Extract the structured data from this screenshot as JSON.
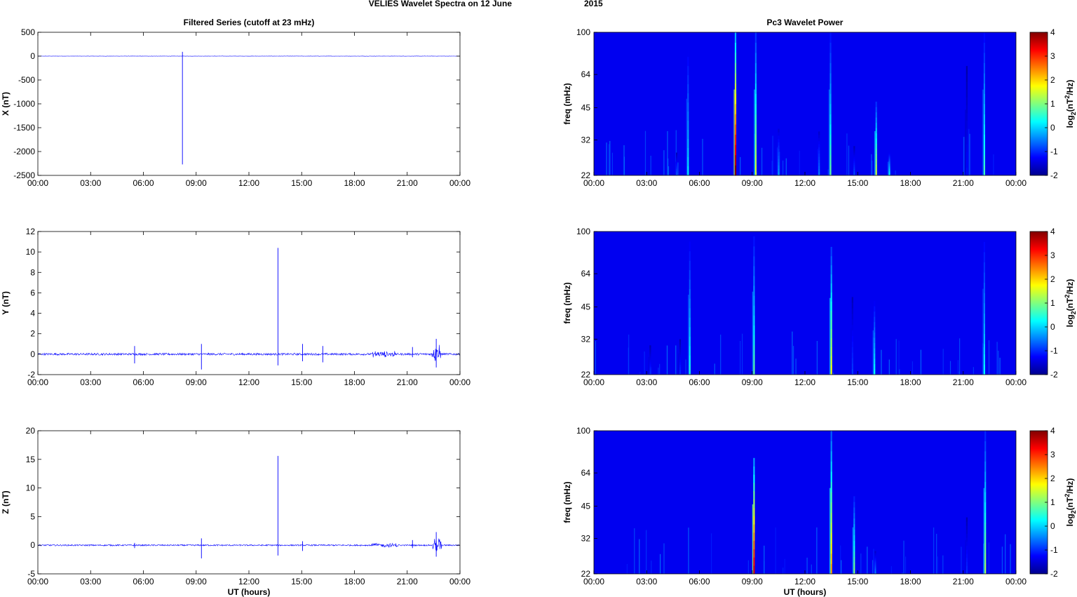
{
  "figure": {
    "title_left": "VELIES Wavelet Spectra on 12 June",
    "title_right": "2015",
    "left_col_title": "Filtered Series (cutoff at 23 mHz)",
    "right_col_title": "Pc3 Wavelet Power",
    "x_label": "UT (hours)",
    "x_ticks": [
      "00:00",
      "03:00",
      "06:00",
      "09:00",
      "12:00",
      "15:00",
      "18:00",
      "21:00",
      "00:00"
    ]
  },
  "chart_data": [
    {
      "type": "line",
      "panel": "X",
      "ylabel": "X (nT)",
      "xlim": [
        0,
        24
      ],
      "ylim": [
        -2500,
        500
      ],
      "yticks": [
        500,
        0,
        -500,
        -1000,
        -1500,
        -2000,
        -2500
      ],
      "color": "#0000ff",
      "baseline": 0,
      "noise": 3,
      "spikes": [
        {
          "x": 8.22,
          "min": -2270,
          "max": 90
        }
      ]
    },
    {
      "type": "line",
      "panel": "Y",
      "ylabel": "Y (nT)",
      "xlim": [
        0,
        24
      ],
      "ylim": [
        -2,
        12
      ],
      "yticks": [
        12,
        10,
        8,
        6,
        4,
        2,
        0,
        -2
      ],
      "color": "#0000ff",
      "baseline": 0,
      "noise": 0.1,
      "spikes": [
        {
          "x": 5.5,
          "min": -0.9,
          "max": 0.8
        },
        {
          "x": 9.3,
          "min": -1.5,
          "max": 1.0
        },
        {
          "x": 13.65,
          "min": -1.1,
          "max": 10.4
        },
        {
          "x": 15.05,
          "min": -0.7,
          "max": 1.0
        },
        {
          "x": 16.2,
          "min": -0.8,
          "max": 0.8
        },
        {
          "x": 21.3,
          "min": -0.3,
          "max": 0.7
        },
        {
          "x": 22.65,
          "min": -1.3,
          "max": 1.5
        }
      ],
      "bursts": [
        {
          "from": 19.0,
          "to": 20.3,
          "amp": 0.35
        },
        {
          "from": 22.4,
          "to": 22.9,
          "amp": 1.1
        }
      ]
    },
    {
      "type": "line",
      "panel": "Z",
      "ylabel": "Z (nT)",
      "xlim": [
        0,
        24
      ],
      "ylim": [
        -5,
        20
      ],
      "yticks": [
        20,
        15,
        10,
        5,
        0,
        -5
      ],
      "color": "#0000ff",
      "baseline": 0,
      "noise": 0.12,
      "spikes": [
        {
          "x": 5.5,
          "min": -0.5,
          "max": 0.4
        },
        {
          "x": 9.3,
          "min": -2.3,
          "max": 1.2
        },
        {
          "x": 13.65,
          "min": -1.8,
          "max": 15.6
        },
        {
          "x": 15.05,
          "min": -1.0,
          "max": 0.7
        },
        {
          "x": 21.3,
          "min": -0.5,
          "max": 0.9
        },
        {
          "x": 22.65,
          "min": -2.0,
          "max": 2.3
        }
      ],
      "bursts": [
        {
          "from": 19.0,
          "to": 20.5,
          "amp": 0.45
        },
        {
          "from": 22.45,
          "to": 22.95,
          "amp": 1.6
        }
      ]
    },
    {
      "type": "heatmap",
      "panel": "X",
      "ylabel": "freq (mHz)",
      "xlim": [
        0,
        24
      ],
      "ylim": [
        22,
        100
      ],
      "yscale": "log",
      "yticks": [
        100,
        64,
        45,
        32,
        22
      ],
      "colorbar": {
        "label": "log2(nT^2/Hz)",
        "ticks": [
          4,
          3,
          2,
          1,
          0,
          -1,
          -2
        ],
        "range": [
          -2,
          4
        ]
      },
      "events": [
        {
          "x": 4.7,
          "fmax": 28,
          "level": -0.8
        },
        {
          "x": 5.35,
          "fmax": 85,
          "level": 0.2
        },
        {
          "x": 8.05,
          "fmax": 100,
          "level": 4.0
        },
        {
          "x": 9.2,
          "fmax": 100,
          "level": 1.5
        },
        {
          "x": 10.5,
          "fmax": 36,
          "level": -0.3
        },
        {
          "x": 12.8,
          "fmax": 35,
          "level": -0.5
        },
        {
          "x": 13.45,
          "fmax": 100,
          "level": 0.8
        },
        {
          "x": 14.8,
          "fmax": 30,
          "level": -0.8
        },
        {
          "x": 16.05,
          "fmax": 48,
          "level": 1.4
        },
        {
          "x": 16.8,
          "fmax": 28,
          "level": 0.3
        },
        {
          "x": 21.2,
          "fmax": 70,
          "level": -1.2
        },
        {
          "x": 22.2,
          "fmax": 100,
          "level": 0.6
        }
      ]
    },
    {
      "type": "heatmap",
      "panel": "Y",
      "ylabel": "freq (mHz)",
      "xlim": [
        0,
        24
      ],
      "ylim": [
        22,
        100
      ],
      "yscale": "log",
      "yticks": [
        100,
        64,
        45,
        32,
        22
      ],
      "colorbar": {
        "label": "log2(nT^2/Hz)",
        "ticks": [
          4,
          3,
          2,
          1,
          0,
          -1,
          -2
        ],
        "range": [
          -2,
          4
        ]
      },
      "events": [
        {
          "x": 3.2,
          "fmax": 30,
          "level": -1.0
        },
        {
          "x": 4.9,
          "fmax": 32,
          "level": -1.0
        },
        {
          "x": 5.45,
          "fmax": 90,
          "level": 0.4
        },
        {
          "x": 9.1,
          "fmax": 95,
          "level": 0.8
        },
        {
          "x": 13.5,
          "fmax": 85,
          "level": 1.7
        },
        {
          "x": 14.7,
          "fmax": 50,
          "level": -0.9
        },
        {
          "x": 15.95,
          "fmax": 48,
          "level": 0.3
        },
        {
          "x": 22.2,
          "fmax": 100,
          "level": 0.2
        }
      ]
    },
    {
      "type": "heatmap",
      "panel": "Z",
      "ylabel": "freq (mHz)",
      "xlim": [
        0,
        24
      ],
      "ylim": [
        22,
        100
      ],
      "yscale": "log",
      "yticks": [
        100,
        64,
        45,
        32,
        22
      ],
      "colorbar": {
        "label": "log2(nT^2/Hz)",
        "ticks": [
          4,
          3,
          2,
          1,
          0,
          -1,
          -2
        ],
        "range": [
          -2,
          4
        ]
      },
      "events": [
        {
          "x": 9.1,
          "fmax": 75,
          "level": 3.5
        },
        {
          "x": 13.5,
          "fmax": 100,
          "level": 2.3
        },
        {
          "x": 14.8,
          "fmax": 50,
          "level": 1.0
        },
        {
          "x": 16.0,
          "fmax": 28,
          "level": -0.5
        },
        {
          "x": 21.2,
          "fmax": 40,
          "level": -1.0
        },
        {
          "x": 22.25,
          "fmax": 100,
          "level": 1.2
        }
      ]
    }
  ]
}
